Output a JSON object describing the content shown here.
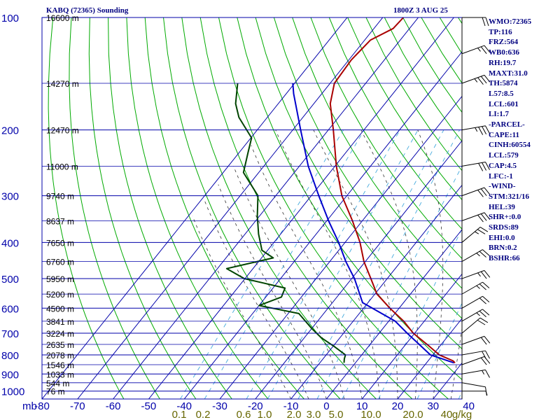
{
  "header": {
    "station": "KABQ (72365) Sounding",
    "time": "1800Z  3 AUG 25"
  },
  "info_panel": [
    "WMO:72365",
    "TP:116",
    "FRZ:564",
    "WB0:636",
    "RH:19.7",
    "MAXT:31.0",
    "TH:5874",
    "L57:8.5",
    "LCL:601",
    "LI:1.7",
    "-PARCEL-",
    "CAPE:11",
    "CINH:60554",
    "LCL:579",
    "CAP:4.5",
    "LFC:-1",
    "-WIND-",
    "STM:321/16",
    "HEL:39",
    "SHR+:0.0",
    "SRDS:89",
    "EHI:0.0",
    "BRN:0.2",
    "BSHR:66"
  ],
  "colors": {
    "axis": "#0000aa",
    "temperature": "#aa0000",
    "dewpoint": "#004400",
    "parcel": "#0000cc",
    "dry_adiabat": "#00aa00",
    "moist_adiabat": "#333333",
    "mixing_ratio": "#44aadd",
    "wind": "#000000",
    "mixing_label": "#666600"
  },
  "chart_data": {
    "type": "skew-t",
    "xlabel": "mb",
    "pressure_ticks": [
      100,
      200,
      300,
      400,
      500,
      600,
      700,
      800,
      900,
      1000
    ],
    "temperature_ticks": [
      -80,
      -70,
      -60,
      -50,
      -40,
      -30,
      -20,
      -10,
      0,
      10,
      20,
      30,
      40,
      50
    ],
    "temperature_tick_labels": [
      "-80",
      "-70",
      "-60",
      "-50",
      "-40",
      "-30",
      "-20",
      "-10",
      "0",
      "10",
      "20",
      "30",
      "40"
    ],
    "height_ticks": [
      {
        "label": "16600 m",
        "p": 100
      },
      {
        "label": "14270 m",
        "p": 150
      },
      {
        "label": "12470 m",
        "p": 200
      },
      {
        "label": "11000 m",
        "p": 250
      },
      {
        "label": "9740 m",
        "p": 300
      },
      {
        "label": "8637 m",
        "p": 350
      },
      {
        "label": "7650 m",
        "p": 400
      },
      {
        "label": "6760 m",
        "p": 450
      },
      {
        "label": "5950 m",
        "p": 500
      },
      {
        "label": "5200 m",
        "p": 550
      },
      {
        "label": "4500 m",
        "p": 600
      },
      {
        "label": "3841 m",
        "p": 650
      },
      {
        "label": "3224 m",
        "p": 700
      },
      {
        "label": "2635 m",
        "p": 750
      },
      {
        "label": "2078 m",
        "p": 800
      },
      {
        "label": "1546 m",
        "p": 850
      },
      {
        "label": "1033 m",
        "p": 900
      },
      {
        "label": "544 m",
        "p": 950
      },
      {
        "label": "76 m",
        "p": 1000
      }
    ],
    "mixing_ratio_labels": [
      "0.1",
      "0.2",
      "0.6",
      "1.0",
      "2.0",
      "3.0",
      "5.0",
      "10.0",
      "20.0",
      "40",
      "g/kg"
    ],
    "temperature_profile": [
      [
        840,
        28
      ],
      [
        830,
        27
      ],
      [
        800,
        21.8
      ],
      [
        750,
        16
      ],
      [
        700,
        9.6
      ],
      [
        650,
        4.2
      ],
      [
        600,
        -2.6
      ],
      [
        550,
        -9.4
      ],
      [
        500,
        -14.6
      ],
      [
        450,
        -20.4
      ],
      [
        400,
        -25.8
      ],
      [
        350,
        -32.8
      ],
      [
        300,
        -41.4
      ],
      [
        250,
        -49.6
      ],
      [
        200,
        -58.6
      ],
      [
        170,
        -65.4
      ],
      [
        150,
        -68.8
      ],
      [
        130,
        -69.3
      ],
      [
        115,
        -68.4
      ],
      [
        107,
        -64.6
      ],
      [
        100,
        -64.2
      ]
    ],
    "dewpoint_profile": [
      [
        840,
        -3.2
      ],
      [
        820,
        -4
      ],
      [
        800,
        -4.6
      ],
      [
        760,
        -9.6
      ],
      [
        720,
        -15.2
      ],
      [
        680,
        -20
      ],
      [
        620,
        -27
      ],
      [
        590,
        -40
      ],
      [
        560,
        -35.6
      ],
      [
        530,
        -36.6
      ],
      [
        500,
        -50.2
      ],
      [
        470,
        -57.4
      ],
      [
        440,
        -46.7
      ],
      [
        420,
        -51.6
      ],
      [
        380,
        -56.2
      ],
      [
        340,
        -60.6
      ],
      [
        300,
        -65
      ],
      [
        260,
        -74.3
      ],
      [
        230,
        -77.5
      ],
      [
        210,
        -79.8
      ],
      [
        185,
        -88
      ],
      [
        170,
        -92
      ],
      [
        150,
        -96
      ]
    ],
    "parcel_profile": [
      [
        840,
        27.7
      ],
      [
        800,
        19.3
      ],
      [
        700,
        7.9
      ],
      [
        650,
        1.8
      ],
      [
        580,
        -11.5
      ],
      [
        500,
        -19.2
      ],
      [
        450,
        -25.5
      ],
      [
        400,
        -31.8
      ],
      [
        350,
        -39.5
      ],
      [
        300,
        -47.9
      ],
      [
        250,
        -57.5
      ],
      [
        200,
        -67.8
      ],
      [
        160,
        -77.9
      ],
      [
        150,
        -80.5
      ]
    ],
    "wind_profile": [
      {
        "p": 1000,
        "dir": 270,
        "spd": 5
      },
      {
        "p": 950,
        "dir": 280,
        "spd": 10
      },
      {
        "p": 900,
        "dir": 260,
        "spd": 15
      },
      {
        "p": 850,
        "dir": 250,
        "spd": 20
      },
      {
        "p": 800,
        "dir": 260,
        "spd": 20
      },
      {
        "p": 750,
        "dir": 250,
        "spd": 20
      },
      {
        "p": 700,
        "dir": 230,
        "spd": 20
      },
      {
        "p": 650,
        "dir": 240,
        "spd": 25
      },
      {
        "p": 600,
        "dir": 240,
        "spd": 20
      },
      {
        "p": 550,
        "dir": 240,
        "spd": 25
      },
      {
        "p": 500,
        "dir": 250,
        "spd": 25
      },
      {
        "p": 450,
        "dir": 240,
        "spd": 25
      },
      {
        "p": 400,
        "dir": 230,
        "spd": 25
      },
      {
        "p": 350,
        "dir": 250,
        "spd": 30
      },
      {
        "p": 300,
        "dir": 250,
        "spd": 30
      },
      {
        "p": 250,
        "dir": 260,
        "spd": 30
      },
      {
        "p": 200,
        "dir": 260,
        "spd": 35
      },
      {
        "p": 150,
        "dir": 250,
        "spd": 35
      },
      {
        "p": 125,
        "dir": 250,
        "spd": 25
      },
      {
        "p": 100,
        "dir": 270,
        "spd": 20
      }
    ]
  }
}
